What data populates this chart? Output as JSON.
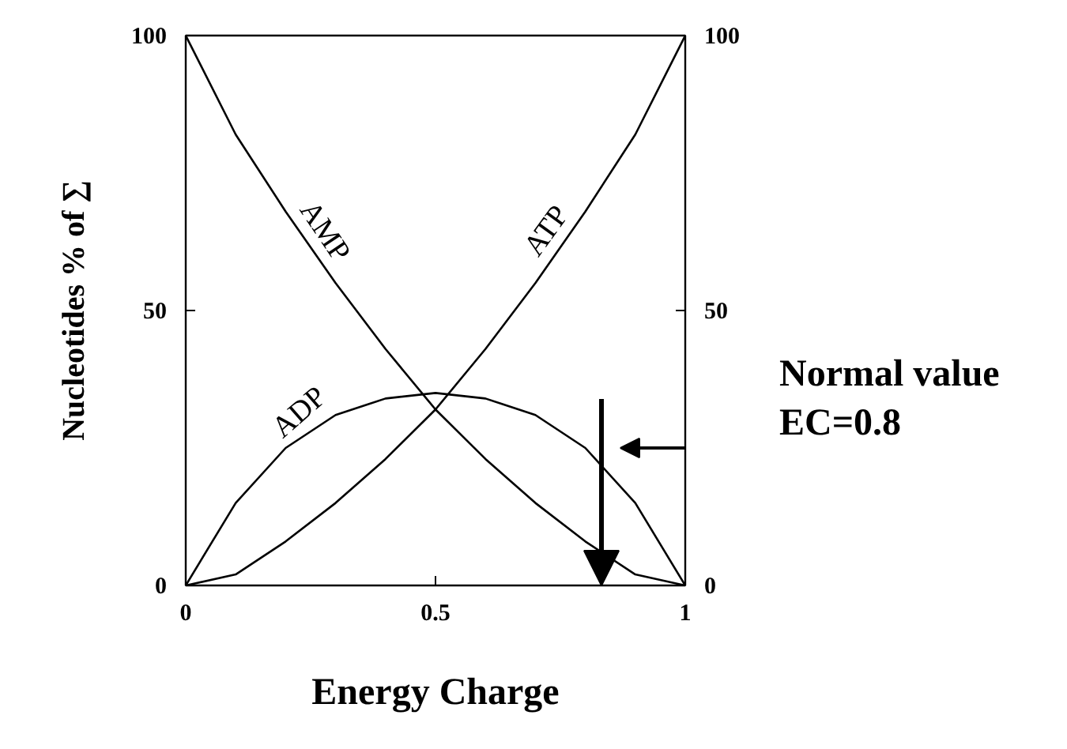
{
  "chart_data": {
    "type": "line",
    "xlabel": "Energy Charge",
    "ylabel": "Nucleotides % of ∑",
    "x": [
      0,
      0.1,
      0.2,
      0.3,
      0.4,
      0.5,
      0.6,
      0.7,
      0.8,
      0.9,
      1
    ],
    "series": [
      {
        "name": "AMP",
        "color": "#000000",
        "values": [
          100,
          82,
          68,
          55,
          43,
          32,
          23,
          15,
          8,
          2,
          0
        ]
      },
      {
        "name": "ATP",
        "color": "#000000",
        "values": [
          0,
          2,
          8,
          15,
          23,
          32,
          43,
          55,
          68,
          82,
          100
        ]
      },
      {
        "name": "ADP",
        "color": "#000000",
        "values": [
          0,
          15,
          25,
          31,
          34,
          35,
          34,
          31,
          25,
          15,
          0
        ]
      }
    ],
    "xlim": [
      0,
      1
    ],
    "ylim": [
      0,
      100
    ],
    "xticks": [
      0,
      0.5,
      1
    ],
    "yticks": [
      0,
      50,
      100
    ],
    "y2lim": [
      0,
      100
    ],
    "y2ticks": [
      0,
      50,
      100
    ],
    "annotations": [
      "Normal value\nEC=0.8"
    ],
    "grid": false,
    "marker": "none",
    "line_style": "solid"
  }
}
